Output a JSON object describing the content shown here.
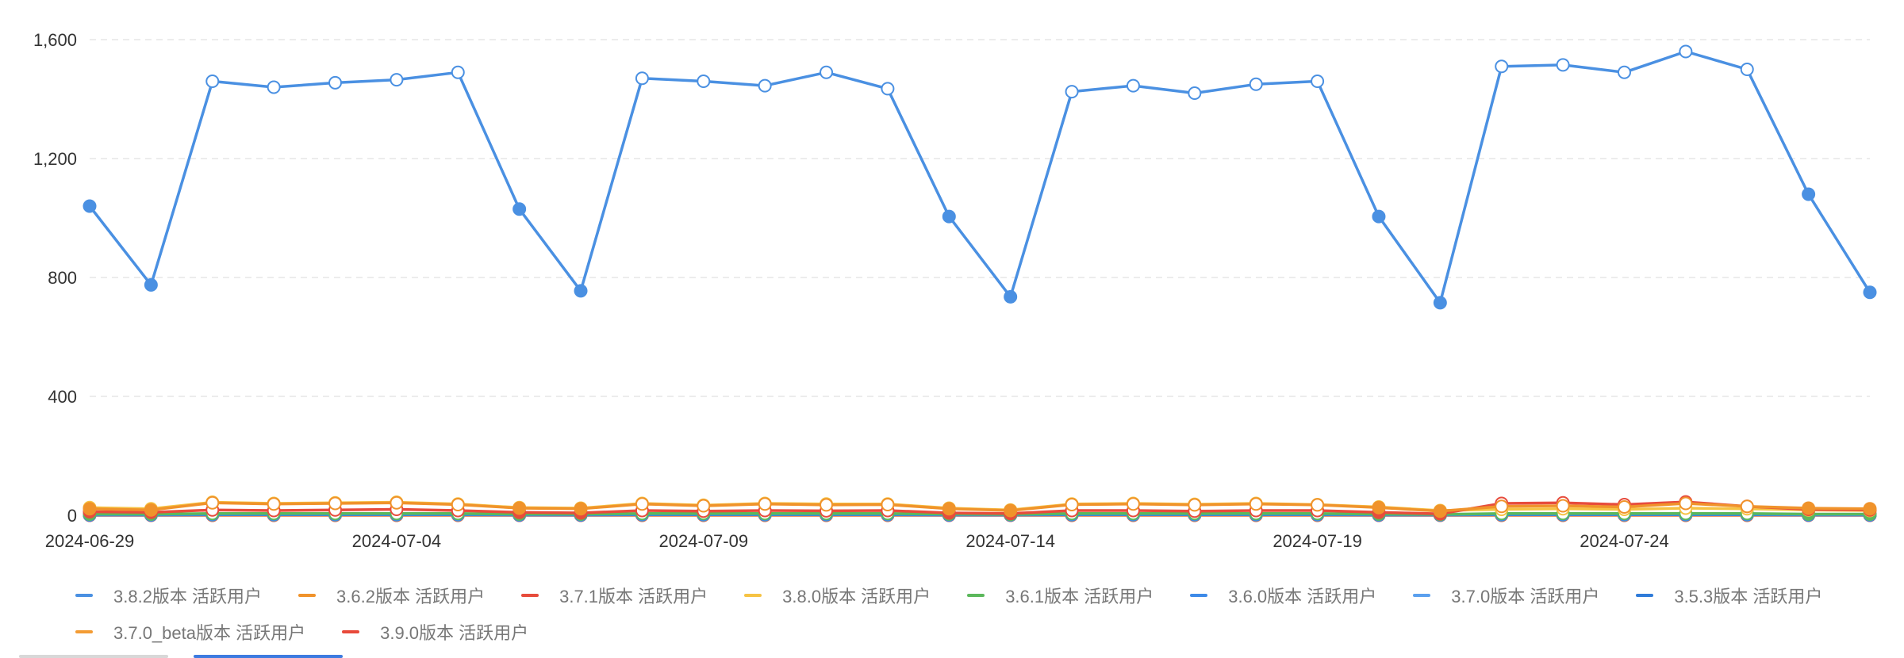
{
  "chart_data": {
    "type": "line",
    "x": [
      "2024-06-29",
      "2024-06-30",
      "2024-07-01",
      "2024-07-02",
      "2024-07-03",
      "2024-07-04",
      "2024-07-05",
      "2024-07-06",
      "2024-07-07",
      "2024-07-08",
      "2024-07-09",
      "2024-07-10",
      "2024-07-11",
      "2024-07-12",
      "2024-07-13",
      "2024-07-14",
      "2024-07-15",
      "2024-07-16",
      "2024-07-17",
      "2024-07-18",
      "2024-07-19",
      "2024-07-20",
      "2024-07-21",
      "2024-07-22",
      "2024-07-23",
      "2024-07-24",
      "2024-07-25",
      "2024-07-26",
      "2024-07-27",
      "2024-07-28"
    ],
    "x_tick_labels": [
      "2024-06-29",
      "2024-07-04",
      "2024-07-09",
      "2024-07-14",
      "2024-07-19",
      "2024-07-24"
    ],
    "ylim": [
      0,
      1600
    ],
    "y_ticks": [
      0,
      400,
      800,
      1200,
      1600
    ],
    "y_tick_labels": [
      "0",
      "400",
      "800",
      "1,200",
      "1,600"
    ],
    "grid": "horizontal dashed",
    "legend_position": "bottom",
    "series": [
      {
        "name": "3.8.2版本 活跃用户",
        "color": "#4A90E2",
        "values": [
          1040,
          775,
          1460,
          1440,
          1455,
          1465,
          1490,
          1030,
          755,
          1470,
          1460,
          1445,
          1490,
          1435,
          1005,
          735,
          1425,
          1445,
          1420,
          1450,
          1460,
          1005,
          715,
          1510,
          1515,
          1490,
          1560,
          1500,
          1080,
          750
        ]
      },
      {
        "name": "3.6.2版本 活跃用户",
        "color": "#F0932B",
        "values": [
          22,
          18,
          42,
          38,
          40,
          42,
          36,
          24,
          22,
          38,
          32,
          38,
          35,
          36,
          22,
          16,
          36,
          38,
          35,
          38,
          35,
          26,
          14,
          30,
          32,
          28,
          40,
          30,
          24,
          22
        ]
      },
      {
        "name": "3.7.1版本 活跃用户",
        "color": "#E74C3C",
        "values": [
          12,
          10,
          18,
          16,
          18,
          20,
          16,
          10,
          8,
          16,
          14,
          16,
          15,
          16,
          8,
          6,
          16,
          16,
          14,
          16,
          16,
          10,
          5,
          40,
          42,
          36,
          45,
          30,
          20,
          18
        ]
      },
      {
        "name": "3.8.0版本 活跃用户",
        "color": "#F6C344",
        "values": [
          26,
          22,
          44,
          40,
          42,
          44,
          38,
          26,
          24,
          40,
          34,
          40,
          38,
          38,
          24,
          18,
          38,
          40,
          37,
          40,
          36,
          28,
          16,
          20,
          22,
          20,
          24,
          22,
          18,
          16
        ]
      },
      {
        "name": "3.6.1版本 活跃用户",
        "color": "#5CB85C",
        "values": [
          4,
          4,
          6,
          6,
          6,
          6,
          6,
          4,
          4,
          6,
          6,
          6,
          6,
          6,
          4,
          3,
          6,
          6,
          6,
          6,
          6,
          4,
          3,
          6,
          6,
          6,
          6,
          6,
          4,
          4
        ]
      },
      {
        "name": "3.6.0版本 活跃用户",
        "color": "#3D8AE8",
        "values": [
          2,
          2,
          3,
          3,
          3,
          3,
          3,
          2,
          2,
          3,
          3,
          3,
          3,
          3,
          2,
          2,
          3,
          3,
          3,
          3,
          3,
          2,
          2,
          3,
          3,
          3,
          3,
          3,
          2,
          2
        ]
      },
      {
        "name": "3.7.0版本 活跃用户",
        "color": "#5BA0EE",
        "values": [
          3,
          3,
          4,
          4,
          4,
          4,
          4,
          3,
          3,
          4,
          4,
          4,
          4,
          4,
          3,
          2,
          4,
          4,
          4,
          4,
          4,
          3,
          2,
          4,
          4,
          4,
          4,
          4,
          3,
          3
        ]
      },
      {
        "name": "3.5.3版本 活跃用户",
        "color": "#2F7BD9",
        "values": [
          1,
          1,
          2,
          2,
          2,
          2,
          2,
          1,
          1,
          2,
          2,
          2,
          2,
          2,
          1,
          1,
          2,
          2,
          2,
          2,
          2,
          1,
          1,
          2,
          2,
          2,
          2,
          2,
          1,
          1
        ]
      },
      {
        "name": "3.7.0_beta版本 活跃用户",
        "color": "#F39C34",
        "values": [
          1,
          1,
          1,
          1,
          1,
          1,
          1,
          1,
          1,
          1,
          1,
          1,
          1,
          1,
          1,
          1,
          1,
          1,
          1,
          1,
          1,
          1,
          1,
          1,
          1,
          1,
          1,
          1,
          1,
          1
        ]
      },
      {
        "name": "3.9.0版本 活跃用户",
        "color": "#E8493A",
        "values": [
          0,
          0,
          0,
          0,
          0,
          0,
          0,
          0,
          0,
          0,
          0,
          0,
          0,
          0,
          0,
          0,
          0,
          0,
          0,
          0,
          0,
          0,
          0,
          0,
          0,
          0,
          0,
          0,
          0,
          0
        ]
      }
    ],
    "weekend_marker": "filled"
  },
  "colors": {
    "grid": "#e6e6e6",
    "tick_text": "#333333",
    "legend_text": "#777777",
    "scroll_active": "#3D7BE0",
    "scroll_inactive": "#d8d8d8"
  }
}
